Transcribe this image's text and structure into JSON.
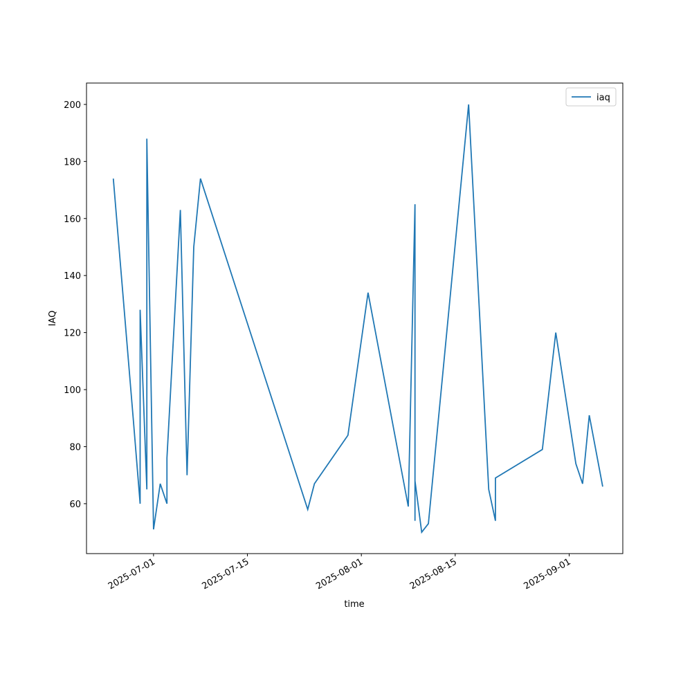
{
  "chart_data": {
    "type": "line",
    "x_label": "time",
    "y_label": "IAQ",
    "x": [
      "2025-06-25",
      "2025-06-28",
      "2025-06-29",
      "2025-06-29",
      "2025-06-30",
      "2025-06-30",
      "2025-07-01",
      "2025-07-02",
      "2025-07-03",
      "2025-07-03",
      "2025-07-05",
      "2025-07-06",
      "2025-07-07",
      "2025-07-08",
      "2025-07-24",
      "2025-07-25",
      "2025-07-30",
      "2025-08-02",
      "2025-08-08",
      "2025-08-09",
      "2025-08-09",
      "2025-08-09",
      "2025-08-10",
      "2025-08-11",
      "2025-08-17",
      "2025-08-20",
      "2025-08-21",
      "2025-08-21",
      "2025-08-28",
      "2025-08-30",
      "2025-09-02",
      "2025-09-03",
      "2025-09-04",
      "2025-09-06"
    ],
    "series": [
      {
        "name": "iaq",
        "color": "#1f77b4",
        "values": [
          174,
          89,
          60,
          128,
          65,
          188,
          51,
          67,
          60,
          76,
          163,
          70,
          150,
          174,
          58,
          67,
          84,
          134,
          59,
          165,
          54,
          68,
          50,
          53,
          200,
          65,
          54,
          69,
          79,
          120,
          74,
          67,
          91,
          66
        ]
      }
    ],
    "xlim": [
      "2025-06-21",
      "2025-09-09"
    ],
    "xticks": [
      "2025-07-01",
      "2025-07-15",
      "2025-08-01",
      "2025-08-15",
      "2025-09-01"
    ],
    "ylim": [
      42.5,
      207.5
    ],
    "yticks": [
      60,
      80,
      100,
      120,
      140,
      160,
      180,
      200
    ],
    "legend": "upper right"
  }
}
